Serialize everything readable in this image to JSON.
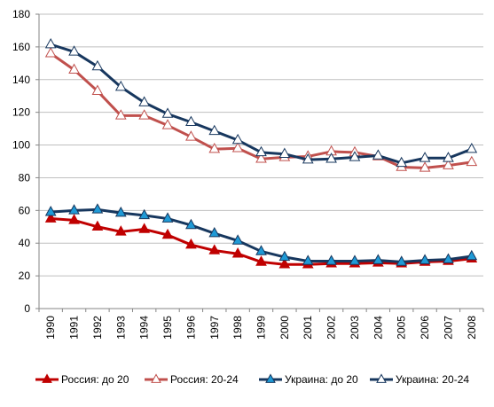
{
  "chart_data": {
    "type": "line",
    "title": "",
    "xlabel": "",
    "ylabel": "",
    "ylim": [
      0,
      180
    ],
    "yticks": [
      0,
      20,
      40,
      60,
      80,
      100,
      120,
      140,
      160,
      180
    ],
    "grid": "horizontal",
    "legend_position": "bottom",
    "categories": [
      "1990",
      "1991",
      "1992",
      "1993",
      "1994",
      "1995",
      "1996",
      "1997",
      "1998",
      "1999",
      "2000",
      "2001",
      "2002",
      "2003",
      "2004",
      "2005",
      "2006",
      "2007",
      "2008"
    ],
    "series": [
      {
        "name": "Россия: до 20",
        "color": "#c00000",
        "marker": "triangle",
        "marker_fill": "#c00000",
        "values": [
          55,
          54,
          50,
          47,
          48.5,
          45,
          39,
          35.5,
          33.5,
          28.5,
          27,
          27,
          27.5,
          27.5,
          28,
          27.5,
          28.5,
          29,
          30.5
        ]
      },
      {
        "name": "Россия: 20-24",
        "color": "#c0504d",
        "marker": "triangle",
        "marker_fill": "#ffffff",
        "values": [
          156,
          146,
          133,
          118,
          118,
          112,
          105,
          97.5,
          98,
          91.5,
          92.5,
          93,
          96,
          95.5,
          93,
          86.5,
          86,
          87.5,
          89.5
        ]
      },
      {
        "name": "Украина: до 20",
        "color": "#17375e",
        "marker": "triangle",
        "marker_fill": "#1f9ad6",
        "values": [
          59,
          60,
          60.5,
          58.5,
          57,
          55,
          51,
          46,
          41.5,
          35,
          31.5,
          29,
          29,
          29,
          29.5,
          28.5,
          29.5,
          30,
          32
        ]
      },
      {
        "name": "Украина: 20-24",
        "color": "#17375e",
        "marker": "triangle",
        "marker_fill": "#ffffff",
        "values": [
          161.5,
          157,
          148,
          135.5,
          126,
          119,
          114,
          108.5,
          103,
          95.5,
          94.5,
          91,
          91.5,
          92.5,
          93.5,
          89,
          92,
          92,
          97.5
        ]
      }
    ]
  }
}
